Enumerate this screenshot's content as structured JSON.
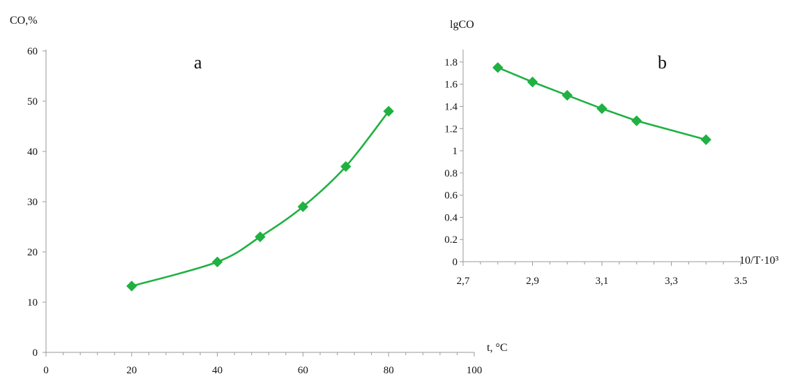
{
  "chart_data": [
    {
      "type": "line",
      "panel_label": "a",
      "ylabel": "CO,%",
      "xlabel": "t, °C",
      "x": [
        20,
        40,
        50,
        60,
        70,
        80
      ],
      "series": [
        {
          "values": [
            13.2,
            18,
            23,
            29,
            37,
            48
          ]
        }
      ],
      "xlim": [
        0,
        100
      ],
      "ylim": [
        0,
        60
      ],
      "x_ticks": [
        0,
        20,
        40,
        60,
        80,
        100
      ],
      "x_tick_labels": [
        "0",
        "20",
        "40",
        "60",
        "80",
        "100"
      ],
      "y_ticks": [
        0,
        10,
        20,
        30,
        40,
        50,
        60
      ],
      "y_tick_labels": [
        "0",
        "10",
        "20",
        "30",
        "40",
        "50",
        "60"
      ],
      "marker": "diamond",
      "smooth": true,
      "grid": false,
      "series_color": "#1fb141"
    },
    {
      "type": "line",
      "panel_label": "b",
      "ylabel": "lgCO",
      "xlabel": "10/T·10³",
      "x": [
        2.8,
        2.9,
        3.0,
        3.1,
        3.2,
        3.4
      ],
      "series": [
        {
          "values": [
            1.75,
            1.62,
            1.5,
            1.38,
            1.27,
            1.1
          ]
        }
      ],
      "xlim": [
        2.7,
        3.5
      ],
      "ylim": [
        0,
        1.9
      ],
      "x_ticks": [
        2.7,
        2.9,
        3.1,
        3.3,
        3.5
      ],
      "x_tick_labels": [
        "2,7",
        "2,9",
        "3,1",
        "3,3",
        "3.5"
      ],
      "y_ticks": [
        0,
        0.2,
        0.4,
        0.6,
        0.8,
        1.0,
        1.2,
        1.4,
        1.6,
        1.8
      ],
      "y_tick_labels": [
        "0",
        "0.2",
        "0.4",
        "0.6",
        "0.8",
        "1",
        "1.2",
        "1.4",
        "1.6",
        "1.8"
      ],
      "marker": "diamond",
      "smooth": false,
      "grid": false,
      "series_color": "#1fb141"
    }
  ]
}
